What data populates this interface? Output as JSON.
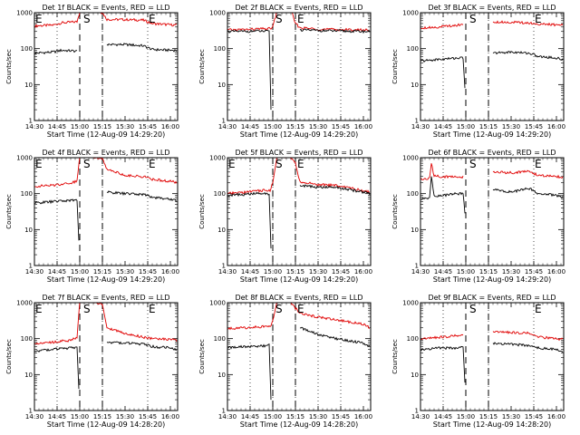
{
  "colors": {
    "events": "#000000",
    "lld": "#e00000",
    "axis": "#000000"
  },
  "chart_data": [
    {
      "type": "line",
      "title": "Det 1f BLACK = Events, RED = LLD",
      "xlabel": "Start Time (12-Aug-09 14:29:20)",
      "ylabel": "Counts/sec",
      "yscale": "log",
      "ylim": [
        1,
        1000
      ],
      "xticks": [
        "14:30",
        "14:45",
        "15:00",
        "15:15",
        "15:30",
        "15:45",
        "16:00"
      ],
      "yticks": [
        "1",
        "10",
        "100",
        "1000"
      ],
      "dotted_x": [
        14.75,
        15.25,
        15.75
      ],
      "dashed_x": [
        15.0,
        15.25
      ],
      "markers": [
        {
          "text": "E",
          "x": 14.5
        },
        {
          "text": "S",
          "x": 15.03
        },
        {
          "text": "E",
          "x": 15.75
        }
      ],
      "series": [
        {
          "name": "LLD",
          "color": "red",
          "x": [
            14.5,
            14.7,
            14.8,
            14.97,
            15.0,
            15.03,
            15.1,
            15.2,
            15.25,
            15.3,
            15.5,
            15.7,
            15.8,
            16.0,
            16.07
          ],
          "y": [
            430,
            450,
            520,
            560,
            1050,
            1100,
            1100,
            1100,
            1000,
            650,
            640,
            620,
            500,
            460,
            450
          ]
        },
        {
          "name": "Events",
          "color": "black",
          "x": [
            14.5,
            14.7,
            14.8,
            14.97,
            14.98,
            15.25,
            15.3,
            15.5,
            15.7,
            15.8,
            16.0,
            16.07
          ],
          "y": [
            75,
            80,
            90,
            85,
            null,
            null,
            130,
            130,
            120,
            95,
            90,
            90
          ]
        }
      ]
    },
    {
      "type": "line",
      "title": "Det 2f BLACK = Events, RED = LLD",
      "xlabel": "Start Time (12-Aug-09 14:29:20)",
      "ylabel": "Counts/sec",
      "yscale": "log",
      "ylim": [
        1,
        1000
      ],
      "xticks": [
        "14:30",
        "14:45",
        "15:00",
        "15:15",
        "15:30",
        "15:45",
        "16:00"
      ],
      "yticks": [
        "1",
        "10",
        "100",
        "1000"
      ],
      "dotted_x": [
        14.75,
        15.0,
        15.25,
        15.5,
        15.75
      ],
      "dashed_x": [
        15.0,
        15.25
      ],
      "markers": [
        {
          "text": "S",
          "x": 15.02
        },
        {
          "text": "E",
          "x": 15.26
        }
      ],
      "series": [
        {
          "name": "LLD",
          "color": "red",
          "x": [
            14.5,
            14.7,
            14.8,
            14.97,
            15.0,
            15.05,
            15.1,
            15.2,
            15.25,
            15.3,
            15.5,
            15.7,
            16.0,
            16.07
          ],
          "y": [
            330,
            340,
            350,
            360,
            400,
            1200,
            1300,
            1200,
            500,
            380,
            350,
            340,
            330,
            330
          ]
        },
        {
          "name": "Events",
          "color": "black",
          "x": [
            14.5,
            14.7,
            14.8,
            14.96,
            14.98,
            15.0,
            15.25,
            15.3,
            15.5,
            15.7,
            16.0,
            16.07
          ],
          "y": [
            300,
            300,
            310,
            300,
            2,
            null,
            null,
            330,
            320,
            310,
            300,
            300
          ]
        }
      ]
    },
    {
      "type": "line",
      "title": "Det 3f BLACK = Events, RED = LLD",
      "xlabel": "Start Time (12-Aug-09 14:29:20)",
      "ylabel": "Counts/sec",
      "yscale": "log",
      "ylim": [
        1,
        1000
      ],
      "xticks": [
        "14:30",
        "14:45",
        "15:00",
        "15:15",
        "15:30",
        "15:45",
        "16:00"
      ],
      "yticks": [
        "1",
        "10",
        "100",
        "1000"
      ],
      "dotted_x": [
        14.75,
        15.25,
        15.75
      ],
      "dashed_x": [
        15.0,
        15.25
      ],
      "markers": [
        {
          "text": "S",
          "x": 15.03
        },
        {
          "text": "E",
          "x": 15.75
        }
      ],
      "series": [
        {
          "name": "LLD",
          "color": "red",
          "x": [
            14.5,
            14.7,
            14.9,
            14.97,
            15.0,
            15.25,
            15.3,
            15.5,
            15.7,
            15.8,
            16.0,
            16.07
          ],
          "y": [
            380,
            400,
            450,
            480,
            null,
            null,
            560,
            540,
            520,
            480,
            460,
            450
          ]
        },
        {
          "name": "Events",
          "color": "black",
          "x": [
            14.5,
            14.7,
            14.9,
            14.97,
            14.99,
            15.0,
            15.25,
            15.3,
            15.5,
            15.7,
            15.8,
            16.0,
            16.07
          ],
          "y": [
            45,
            50,
            55,
            55,
            8,
            null,
            null,
            75,
            80,
            75,
            60,
            55,
            50
          ]
        }
      ]
    },
    {
      "type": "line",
      "title": "Det 4f BLACK = Events, RED = LLD",
      "xlabel": "Start Time (12-Aug-09 14:29:20)",
      "ylabel": "Counts/sec",
      "yscale": "log",
      "ylim": [
        1,
        1000
      ],
      "xticks": [
        "14:30",
        "14:45",
        "15:00",
        "15:15",
        "15:30",
        "15:45",
        "16:00"
      ],
      "yticks": [
        "1",
        "10",
        "100",
        "1000"
      ],
      "dotted_x": [
        14.75,
        15.25,
        15.75
      ],
      "dashed_x": [
        15.0,
        15.25
      ],
      "markers": [
        {
          "text": "E",
          "x": 14.5
        },
        {
          "text": "S",
          "x": 15.03
        },
        {
          "text": "E",
          "x": 15.75
        }
      ],
      "series": [
        {
          "name": "LLD",
          "color": "red",
          "x": [
            14.5,
            14.7,
            14.9,
            14.97,
            15.0,
            15.05,
            15.1,
            15.2,
            15.25,
            15.3,
            15.5,
            15.7,
            15.8,
            16.0,
            16.07
          ],
          "y": [
            160,
            170,
            200,
            220,
            1100,
            1200,
            1100,
            1000,
            900,
            500,
            320,
            300,
            250,
            220,
            200
          ]
        },
        {
          "name": "Events",
          "color": "black",
          "x": [
            14.5,
            14.7,
            14.9,
            14.97,
            14.99,
            15.0,
            15.25,
            15.3,
            15.5,
            15.7,
            15.8,
            16.0,
            16.07
          ],
          "y": [
            55,
            60,
            65,
            65,
            5,
            null,
            null,
            110,
            100,
            95,
            80,
            70,
            65
          ]
        }
      ]
    },
    {
      "type": "line",
      "title": "Det 5f BLACK = Events, RED = LLD",
      "xlabel": "Start Time (12-Aug-09 14:29:20)",
      "ylabel": "Counts/sec",
      "yscale": "log",
      "ylim": [
        1,
        1000
      ],
      "xticks": [
        "14:30",
        "14:45",
        "15:00",
        "15:15",
        "15:30",
        "15:45",
        "16:00"
      ],
      "yticks": [
        "1",
        "10",
        "100",
        "1000"
      ],
      "dotted_x": [
        14.75,
        15.0,
        15.25,
        15.5,
        15.75
      ],
      "dashed_x": [
        15.0,
        15.25
      ],
      "markers": [
        {
          "text": "E",
          "x": 14.5
        },
        {
          "text": "S",
          "x": 15.02
        },
        {
          "text": "E",
          "x": 15.26
        }
      ],
      "series": [
        {
          "name": "LLD",
          "color": "red",
          "x": [
            14.5,
            14.7,
            14.8,
            14.97,
            15.0,
            15.05,
            15.1,
            15.2,
            15.25,
            15.3,
            15.5,
            15.7,
            16.0,
            16.07
          ],
          "y": [
            100,
            110,
            120,
            125,
            200,
            1200,
            1100,
            1000,
            700,
            210,
            180,
            170,
            120,
            110
          ]
        },
        {
          "name": "Events",
          "color": "black",
          "x": [
            14.5,
            14.7,
            14.8,
            14.96,
            14.98,
            15.0,
            15.25,
            15.3,
            15.5,
            15.7,
            16.0,
            16.07
          ],
          "y": [
            90,
            95,
            100,
            100,
            3,
            null,
            null,
            170,
            150,
            150,
            110,
            100
          ]
        }
      ]
    },
    {
      "type": "line",
      "title": "Det 6f BLACK = Events, RED = LLD",
      "xlabel": "Start Time (12-Aug-09 14:29:20)",
      "ylabel": "Counts/sec",
      "yscale": "log",
      "ylim": [
        1,
        1000
      ],
      "xticks": [
        "14:30",
        "14:45",
        "15:00",
        "15:15",
        "15:30",
        "15:45",
        "16:00"
      ],
      "yticks": [
        "1",
        "10",
        "100",
        "1000"
      ],
      "dotted_x": [
        14.75,
        15.25,
        15.75
      ],
      "dashed_x": [
        15.0,
        15.25
      ],
      "markers": [
        {
          "text": "S",
          "x": 15.03
        },
        {
          "text": "E",
          "x": 15.75
        }
      ],
      "series": [
        {
          "name": "LLD",
          "color": "red",
          "x": [
            14.5,
            14.6,
            14.62,
            14.65,
            14.7,
            14.9,
            14.97,
            15.0,
            15.25,
            15.3,
            15.5,
            15.7,
            15.8,
            16.0,
            16.07
          ],
          "y": [
            250,
            260,
            700,
            320,
            300,
            290,
            290,
            null,
            null,
            400,
            380,
            420,
            320,
            300,
            290
          ]
        },
        {
          "name": "Events",
          "color": "black",
          "x": [
            14.5,
            14.6,
            14.62,
            14.65,
            14.7,
            14.9,
            14.97,
            14.99,
            15.0,
            15.25,
            15.3,
            15.5,
            15.7,
            15.8,
            16.0,
            16.07
          ],
          "y": [
            70,
            75,
            300,
            90,
            85,
            100,
            100,
            30,
            null,
            null,
            130,
            110,
            140,
            100,
            90,
            80
          ]
        }
      ]
    },
    {
      "type": "line",
      "title": "Det 7f BLACK = Events, RED = LLD",
      "xlabel": "Start Time (12-Aug-09 14:28:20)",
      "ylabel": "Counts/sec",
      "yscale": "log",
      "ylim": [
        1,
        1000
      ],
      "xticks": [
        "14:30",
        "14:45",
        "15:00",
        "15:15",
        "15:30",
        "15:45",
        "16:00"
      ],
      "yticks": [
        "1",
        "10",
        "100",
        "1000"
      ],
      "dotted_x": [
        14.75,
        15.25,
        15.75
      ],
      "dashed_x": [
        15.0,
        15.25
      ],
      "markers": [
        {
          "text": "E",
          "x": 14.5
        },
        {
          "text": "S",
          "x": 15.03
        },
        {
          "text": "E",
          "x": 15.75
        }
      ],
      "series": [
        {
          "name": "LLD",
          "color": "red",
          "x": [
            14.5,
            14.7,
            14.9,
            14.97,
            15.0,
            15.05,
            15.1,
            15.2,
            15.25,
            15.3,
            15.5,
            15.7,
            15.8,
            16.0,
            16.07
          ],
          "y": [
            75,
            80,
            90,
            110,
            1100,
            1200,
            1100,
            1000,
            900,
            200,
            140,
            110,
            100,
            95,
            90
          ]
        },
        {
          "name": "Events",
          "color": "black",
          "x": [
            14.5,
            14.7,
            14.9,
            14.97,
            14.99,
            15.0,
            15.25,
            15.3,
            15.5,
            15.7,
            15.8,
            16.0,
            16.07
          ],
          "y": [
            45,
            50,
            55,
            55,
            4,
            null,
            null,
            80,
            75,
            70,
            60,
            55,
            50
          ]
        }
      ]
    },
    {
      "type": "line",
      "title": "Det 8f BLACK = Events, RED = LLD",
      "xlabel": "Start Time (12-Aug-09 14:28:20)",
      "ylabel": "Counts/sec",
      "yscale": "log",
      "ylim": [
        1,
        1000
      ],
      "xticks": [
        "14:30",
        "14:45",
        "15:00",
        "15:15",
        "15:30",
        "15:45",
        "16:00"
      ],
      "yticks": [
        "1",
        "10",
        "100",
        "1000"
      ],
      "dotted_x": [
        14.75,
        15.0,
        15.25,
        15.5,
        15.75
      ],
      "dashed_x": [
        15.0,
        15.25
      ],
      "markers": [
        {
          "text": "S",
          "x": 15.02
        },
        {
          "text": "E",
          "x": 15.26
        }
      ],
      "series": [
        {
          "name": "LLD",
          "color": "red",
          "x": [
            14.5,
            14.7,
            14.8,
            14.97,
            15.0,
            15.05,
            15.1,
            15.2,
            15.25,
            15.3,
            15.5,
            15.7,
            16.0,
            16.07
          ],
          "y": [
            190,
            200,
            210,
            220,
            300,
            1200,
            1100,
            1000,
            700,
            500,
            400,
            330,
            250,
            200
          ]
        },
        {
          "name": "Events",
          "color": "black",
          "x": [
            14.5,
            14.7,
            14.8,
            14.96,
            14.98,
            15.0,
            15.25,
            15.3,
            15.5,
            15.7,
            16.0,
            16.07
          ],
          "y": [
            55,
            60,
            60,
            65,
            2,
            null,
            null,
            200,
            130,
            100,
            75,
            60
          ]
        }
      ]
    },
    {
      "type": "line",
      "title": "Det 9f BLACK = Events, RED = LLD",
      "xlabel": "Start Time (12-Aug-09 14:28:20)",
      "ylabel": "Counts/sec",
      "yscale": "log",
      "ylim": [
        1,
        1000
      ],
      "xticks": [
        "14:30",
        "14:45",
        "15:00",
        "15:15",
        "15:30",
        "15:45",
        "16:00"
      ],
      "yticks": [
        "1",
        "10",
        "100",
        "1000"
      ],
      "dotted_x": [
        14.75,
        15.25,
        15.75
      ],
      "dashed_x": [
        15.0,
        15.25
      ],
      "markers": [
        {
          "text": "S",
          "x": 15.03
        },
        {
          "text": "E",
          "x": 15.75
        }
      ],
      "series": [
        {
          "name": "LLD",
          "color": "red",
          "x": [
            14.5,
            14.7,
            14.9,
            14.97,
            15.0,
            15.25,
            15.3,
            15.5,
            15.7,
            15.8,
            16.0,
            16.07
          ],
          "y": [
            100,
            110,
            120,
            125,
            null,
            null,
            160,
            150,
            140,
            110,
            100,
            95
          ]
        },
        {
          "name": "Events",
          "color": "black",
          "x": [
            14.5,
            14.7,
            14.9,
            14.97,
            14.99,
            15.0,
            15.25,
            15.3,
            15.5,
            15.7,
            15.8,
            16.0,
            16.07
          ],
          "y": [
            50,
            55,
            55,
            60,
            6,
            null,
            null,
            75,
            70,
            65,
            55,
            50,
            45
          ]
        }
      ]
    }
  ]
}
